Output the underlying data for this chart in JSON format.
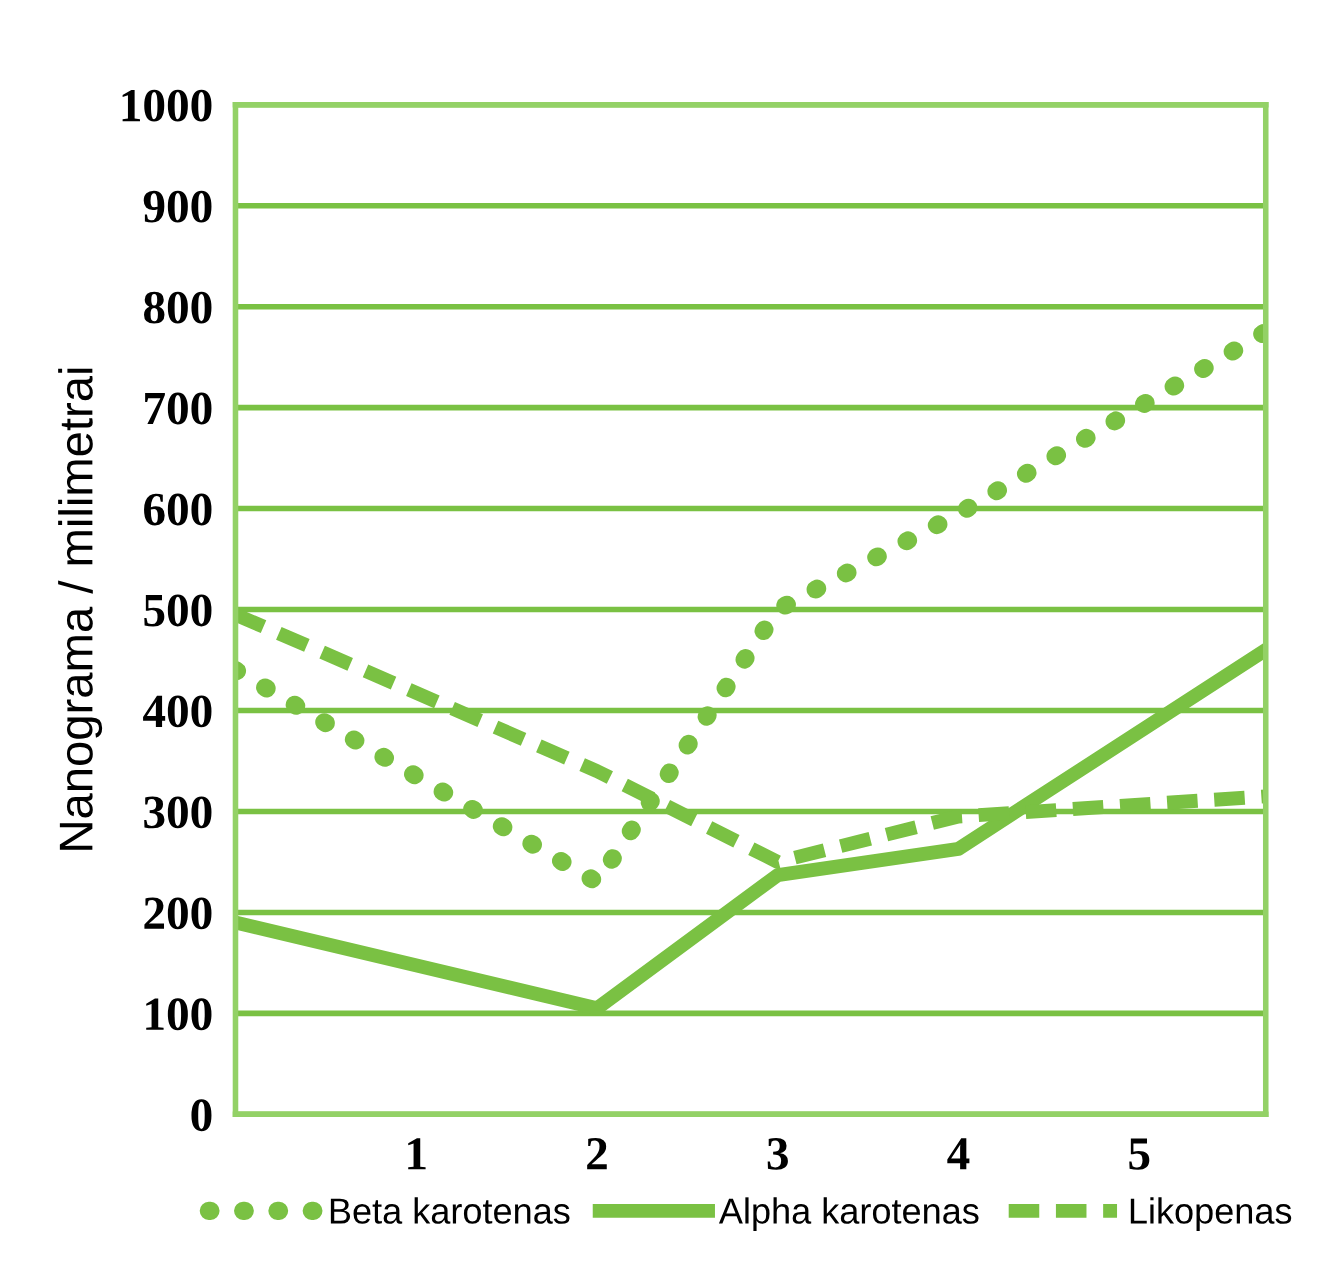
{
  "chart_data": {
    "type": "line",
    "ylabel": "Nanograma / milimetrai",
    "xlim": [
      0,
      5.7
    ],
    "xticks": [
      1,
      2,
      3,
      4,
      5
    ],
    "ylim": [
      0,
      1000
    ],
    "yticks": [
      0,
      100,
      200,
      300,
      400,
      500,
      600,
      700,
      800,
      900,
      1000
    ],
    "grid": "y",
    "legend": "bottom",
    "series": [
      {
        "name": "Beta karotenas",
        "color": "#7ac143",
        "line_style": "dotted",
        "x": [
          0,
          2,
          3,
          4,
          5.7
        ],
        "values": [
          440,
          230,
          500,
          595,
          775
        ]
      },
      {
        "name": "Alpha karotenas",
        "color": "#7ac143",
        "line_style": "solid",
        "x": [
          0,
          2,
          3,
          4,
          5.7
        ],
        "values": [
          190,
          105,
          237,
          263,
          460
        ]
      },
      {
        "name": "Likopenas",
        "color": "#7ac143",
        "line_style": "dashed",
        "x": [
          0,
          2,
          3,
          4,
          5.7
        ],
        "values": [
          495,
          340,
          250,
          295,
          315
        ]
      }
    ]
  }
}
